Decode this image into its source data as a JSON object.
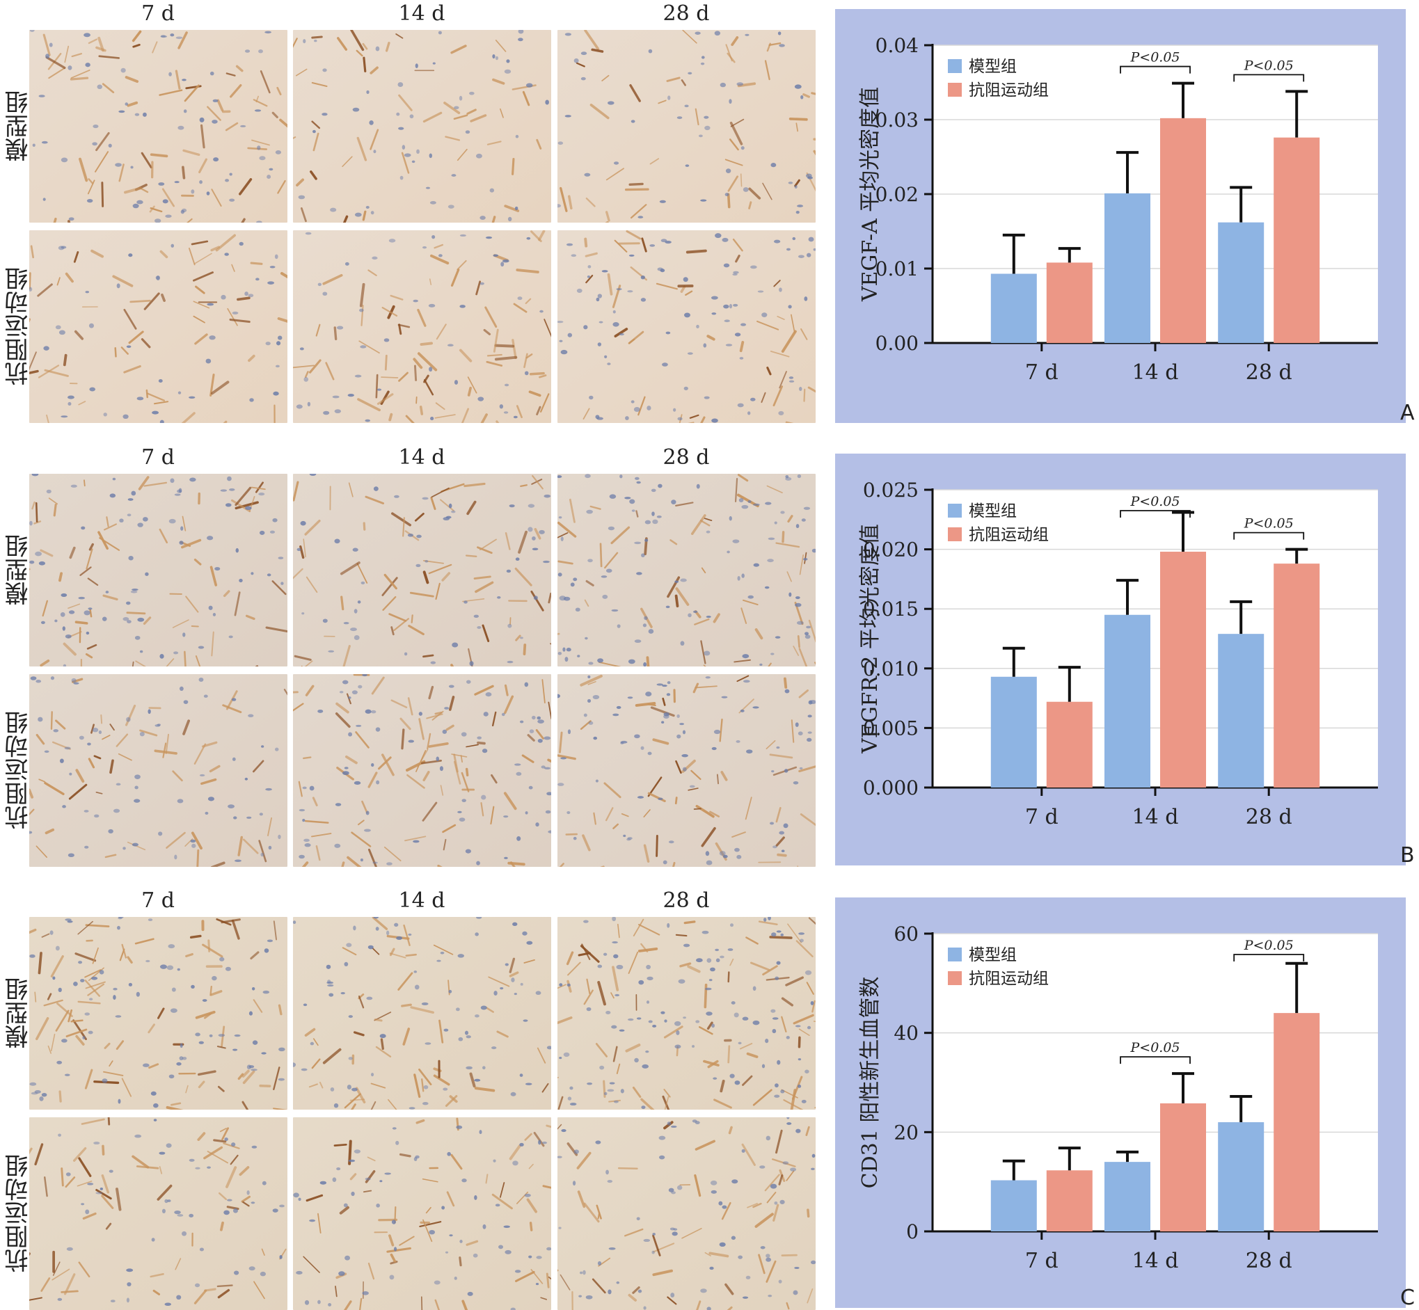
{
  "figures": [
    {
      "letter": "A",
      "columns": [
        "7 d",
        "14 d",
        "28 d"
      ],
      "rows": [
        "模型组",
        "抗阻运动组"
      ],
      "chart_data": {
        "type": "bar",
        "categories": [
          "7 d",
          "14 d",
          "28 d"
        ],
        "series": [
          {
            "name": "模型组",
            "color": "#8eb4e3",
            "values": [
              0.0093,
              0.0201,
              0.0162
            ],
            "errors": [
              0.0052,
              0.0055,
              0.0047
            ]
          },
          {
            "name": "抗阻运动组",
            "color": "#ec9786",
            "values": [
              0.0108,
              0.0302,
              0.0276
            ],
            "errors": [
              0.0019,
              0.0047,
              0.0062
            ]
          }
        ],
        "ylabel": "VEGF-A 平均光密度值",
        "ylim": [
          0,
          0.04
        ],
        "yticks": [
          "0.00",
          "0.01",
          "0.02",
          "0.03",
          "0.04"
        ],
        "yticks_values": [
          0,
          0.01,
          0.02,
          0.03,
          0.04
        ],
        "grid": true,
        "legend_position": "top-left",
        "annotations": [
          {
            "text": "P<0.05",
            "category": 1
          },
          {
            "text": "P<0.05",
            "category": 2
          }
        ]
      }
    },
    {
      "letter": "B",
      "columns": [
        "7 d",
        "14 d",
        "28 d"
      ],
      "rows": [
        "模型组",
        "抗阻运动组"
      ],
      "chart_data": {
        "type": "bar",
        "categories": [
          "7 d",
          "14 d",
          "28 d"
        ],
        "series": [
          {
            "name": "模型组",
            "color": "#8eb4e3",
            "values": [
              0.0093,
              0.0145,
              0.0129
            ],
            "errors": [
              0.0024,
              0.0029,
              0.0027
            ]
          },
          {
            "name": "抗阻运动组",
            "color": "#ec9786",
            "values": [
              0.0072,
              0.0198,
              0.0188
            ],
            "errors": [
              0.0029,
              0.0033,
              0.0012
            ]
          }
        ],
        "ylabel": "VEGFR-2 平均光密度值",
        "ylim": [
          0,
          0.025
        ],
        "yticks": [
          "0.000",
          "0.005",
          "0.010",
          "0.015",
          "0.020",
          "0.025"
        ],
        "yticks_values": [
          0,
          0.005,
          0.01,
          0.015,
          0.02,
          0.025
        ],
        "grid": true,
        "legend_position": "top-left",
        "annotations": [
          {
            "text": "P<0.05",
            "category": 1
          },
          {
            "text": "P<0.05",
            "category": 2
          }
        ]
      }
    },
    {
      "letter": "C",
      "columns": [
        "7 d",
        "14 d",
        "28 d"
      ],
      "rows": [
        "模型组",
        "抗阻运动组"
      ],
      "chart_data": {
        "type": "bar",
        "categories": [
          "7 d",
          "14 d",
          "28 d"
        ],
        "series": [
          {
            "name": "模型组",
            "color": "#8eb4e3",
            "values": [
              10.3,
              14.0,
              22.0
            ],
            "errors": [
              3.9,
              2.0,
              5.2
            ]
          },
          {
            "name": "抗阻运动组",
            "color": "#ec9786",
            "values": [
              12.3,
              25.8,
              44.0
            ],
            "errors": [
              4.5,
              6.0,
              10.0
            ]
          }
        ],
        "ylabel": "CD31 阳性新生血管数",
        "ylim": [
          0,
          60
        ],
        "yticks": [
          "0",
          "20",
          "40",
          "60"
        ],
        "yticks_values": [
          0,
          20,
          40,
          60
        ],
        "grid": true,
        "legend_position": "top-left",
        "annotations": [
          {
            "text": "P<0.05",
            "category": 1
          },
          {
            "text": "P<0.05",
            "category": 2
          }
        ]
      }
    }
  ]
}
